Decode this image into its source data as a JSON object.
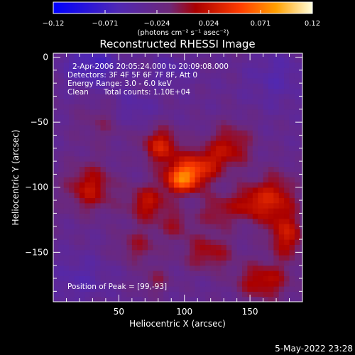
{
  "chart_data": {
    "type": "heatmap",
    "title": "Reconstructed RHESSI Image",
    "xlabel": "Heliocentric X (arcsec)",
    "ylabel": "Heliocentric Y (arcsec)",
    "xlim": [
      0,
      190
    ],
    "ylim": [
      -188,
      3
    ],
    "x_ticks": [
      "50",
      "100",
      "150"
    ],
    "y_ticks": [
      "0",
      "−50",
      "−100",
      "−150"
    ],
    "colorbar": {
      "min": -0.12,
      "max": 0.12,
      "tick_labels": [
        "−0.12",
        "−0.071",
        "−0.024",
        "0.024",
        "0.071",
        "0.12"
      ],
      "units": "(photons cm⁻² s⁻¹ asec⁻²)"
    },
    "annotations": {
      "time_range": "2-Apr-2006 20:05:24.000 to 20:09:08.000",
      "detectors": "Detectors: 3F 4F 5F 6F 7F 8F, Att 0",
      "energy_range": "Energy Range: 3.0 - 6.0 keV",
      "clean": "Clean",
      "total_counts": "Total counts: 1.10E+04",
      "peak": "Position of Peak = [99,-93]"
    },
    "peak": {
      "x": 99,
      "y": -93
    },
    "emission_blobs": [
      {
        "x": 99,
        "y": -93,
        "sx": 10,
        "sy": 8,
        "a": 0.095
      },
      {
        "x": 82,
        "y": -68,
        "sx": 10,
        "sy": 10,
        "a": 0.06
      },
      {
        "x": 113,
        "y": -82,
        "sx": 12,
        "sy": 9,
        "a": 0.05
      },
      {
        "x": 72,
        "y": -112,
        "sx": 11,
        "sy": 10,
        "a": 0.05
      },
      {
        "x": 28,
        "y": -100,
        "sx": 13,
        "sy": 13,
        "a": 0.05
      },
      {
        "x": 65,
        "y": -145,
        "sx": 12,
        "sy": 10,
        "a": 0.03
      },
      {
        "x": 135,
        "y": -68,
        "sx": 12,
        "sy": 12,
        "a": 0.045
      },
      {
        "x": 170,
        "y": -108,
        "sx": 11,
        "sy": 14,
        "a": 0.05
      },
      {
        "x": 150,
        "y": -112,
        "sx": 10,
        "sy": 10,
        "a": 0.045
      },
      {
        "x": 160,
        "y": -172,
        "sx": 14,
        "sy": 10,
        "a": 0.05
      },
      {
        "x": 118,
        "y": -150,
        "sx": 14,
        "sy": 10,
        "a": 0.04
      },
      {
        "x": 178,
        "y": -138,
        "sx": 10,
        "sy": 12,
        "a": 0.05
      },
      {
        "x": 38,
        "y": -50,
        "sx": 14,
        "sy": 12,
        "a": 0.02
      },
      {
        "x": 125,
        "y": -118,
        "sx": 10,
        "sy": 10,
        "a": 0.035
      },
      {
        "x": 94,
        "y": -128,
        "sx": 9,
        "sy": 8,
        "a": 0.03
      },
      {
        "x": 78,
        "y": -172,
        "sx": 8,
        "sy": 7,
        "a": 0.025
      },
      {
        "x": 30,
        "y": -5,
        "sx": 15,
        "sy": 12,
        "a": -0.035
      },
      {
        "x": 170,
        "y": -15,
        "sx": 15,
        "sy": 15,
        "a": -0.02
      },
      {
        "x": 60,
        "y": -40,
        "sx": 12,
        "sy": 10,
        "a": -0.02
      },
      {
        "x": 20,
        "y": -170,
        "sx": 15,
        "sy": 12,
        "a": -0.02
      },
      {
        "x": 90,
        "y": -10,
        "sx": 12,
        "sy": 8,
        "a": -0.02
      }
    ]
  },
  "footer": {
    "date": "5-May-2022 23:28"
  }
}
